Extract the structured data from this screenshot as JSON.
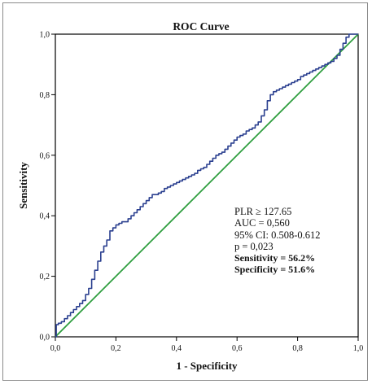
{
  "chart_data": {
    "type": "line",
    "title": "ROC Curve",
    "xlabel": "1 - Specificity",
    "ylabel": "Sensitivity",
    "xlim": [
      0,
      1
    ],
    "ylim": [
      0,
      1
    ],
    "x_ticks": [
      "0,0",
      "0,2",
      "0,4",
      "0,6",
      "0,8",
      "1,0"
    ],
    "y_ticks": [
      "0,0",
      "0,2",
      "0,4",
      "0,6",
      "0,8",
      "1,0"
    ],
    "grid": false,
    "series": [
      {
        "color": "#2a3f8f",
        "x": [
          0.0,
          0.003,
          0.01,
          0.02,
          0.03,
          0.04,
          0.05,
          0.06,
          0.07,
          0.08,
          0.09,
          0.1,
          0.11,
          0.12,
          0.13,
          0.14,
          0.15,
          0.16,
          0.17,
          0.18,
          0.19,
          0.2,
          0.21,
          0.22,
          0.23,
          0.24,
          0.25,
          0.26,
          0.27,
          0.28,
          0.29,
          0.3,
          0.31,
          0.32,
          0.33,
          0.34,
          0.35,
          0.36,
          0.37,
          0.38,
          0.39,
          0.4,
          0.41,
          0.42,
          0.43,
          0.44,
          0.45,
          0.46,
          0.47,
          0.48,
          0.49,
          0.5,
          0.51,
          0.52,
          0.53,
          0.54,
          0.55,
          0.56,
          0.57,
          0.58,
          0.59,
          0.6,
          0.61,
          0.62,
          0.63,
          0.64,
          0.65,
          0.66,
          0.67,
          0.68,
          0.69,
          0.7,
          0.71,
          0.72,
          0.73,
          0.74,
          0.75,
          0.76,
          0.77,
          0.78,
          0.79,
          0.8,
          0.81,
          0.82,
          0.83,
          0.84,
          0.85,
          0.86,
          0.87,
          0.88,
          0.89,
          0.9,
          0.91,
          0.92,
          0.93,
          0.94,
          0.95,
          0.96,
          0.97,
          0.98,
          1.0
        ],
        "y": [
          0.0,
          0.04,
          0.045,
          0.05,
          0.06,
          0.07,
          0.08,
          0.09,
          0.1,
          0.11,
          0.12,
          0.14,
          0.16,
          0.19,
          0.22,
          0.25,
          0.28,
          0.3,
          0.32,
          0.35,
          0.36,
          0.37,
          0.375,
          0.38,
          0.38,
          0.39,
          0.4,
          0.41,
          0.42,
          0.43,
          0.44,
          0.45,
          0.46,
          0.47,
          0.47,
          0.475,
          0.48,
          0.49,
          0.495,
          0.5,
          0.505,
          0.51,
          0.515,
          0.52,
          0.525,
          0.53,
          0.535,
          0.54,
          0.55,
          0.555,
          0.56,
          0.57,
          0.58,
          0.59,
          0.6,
          0.605,
          0.61,
          0.62,
          0.63,
          0.64,
          0.65,
          0.66,
          0.665,
          0.67,
          0.68,
          0.685,
          0.69,
          0.7,
          0.71,
          0.73,
          0.75,
          0.78,
          0.8,
          0.81,
          0.815,
          0.82,
          0.825,
          0.83,
          0.835,
          0.84,
          0.845,
          0.85,
          0.86,
          0.865,
          0.87,
          0.875,
          0.88,
          0.885,
          0.89,
          0.895,
          0.9,
          0.905,
          0.91,
          0.92,
          0.93,
          0.95,
          0.97,
          0.99,
          1.0,
          1.0,
          1.0
        ]
      },
      {
        "color": "#2e9e3e",
        "x": [
          0,
          1
        ],
        "y": [
          0,
          1
        ]
      }
    ],
    "annotations": [
      "PLR ≥ 127.65",
      "AUC = 0,560",
      "95%  CI: 0.508-0.612",
      "p = 0,023",
      "Sensitivity = 56.2%",
      "Specificity = 51.6%"
    ]
  }
}
